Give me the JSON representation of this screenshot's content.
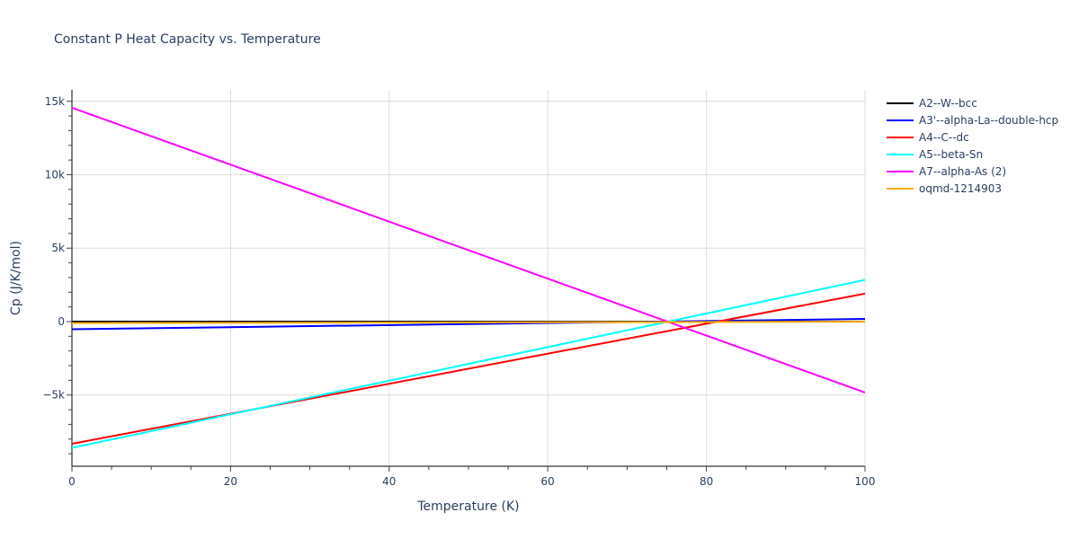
{
  "title": "Constant P Heat Capacity vs. Temperature",
  "chart_data": {
    "type": "line",
    "title": "Constant P Heat Capacity vs. Temperature",
    "xlabel": "Temperature (K)",
    "ylabel": "Cp (J/K/mol)",
    "xlim": [
      0,
      100
    ],
    "ylim": [
      -9850,
      15780
    ],
    "x_ticks": [
      "0",
      "20",
      "40",
      "60",
      "80",
      "100"
    ],
    "y_ticks": [
      "15k",
      "10k",
      "5k",
      "0",
      "−5k"
    ],
    "grid": true,
    "legend_position": "right",
    "x": [
      0,
      100
    ],
    "series": [
      {
        "name": "A2--W--bcc",
        "color": "#000000",
        "values": [
          0,
          0
        ]
      },
      {
        "name": "A3'--alpha-La--double-hcp",
        "color": "#0000ff",
        "values": [
          -520,
          180
        ]
      },
      {
        "name": "A4--C--dc",
        "color": "#ff0000",
        "values": [
          -8320,
          1900
        ]
      },
      {
        "name": "A5--beta-Sn",
        "color": "#00ffff",
        "values": [
          -8600,
          2840
        ]
      },
      {
        "name": "A7--alpha-As (2)",
        "color": "#ff00ff",
        "values": [
          14560,
          -4830
        ]
      },
      {
        "name": "oqmd-1214903",
        "color": "#ffb000",
        "values": [
          -100,
          -10
        ]
      }
    ]
  }
}
